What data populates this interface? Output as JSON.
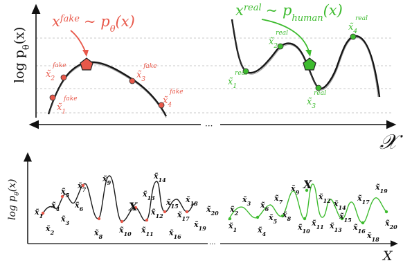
{
  "top": {
    "y_axis_label": "log p",
    "y_axis_label_sub": "θ",
    "y_axis_label_arg": "(x)",
    "x_axis_symbol": "𝒳",
    "ellipsis": "···",
    "fake_title_base": "x",
    "fake_title_sup": "fake",
    "fake_title_rest": "~ p",
    "fake_title_sub": "θ",
    "fake_title_arg": "(x)",
    "real_title_base": "x",
    "real_title_sup": "real",
    "real_title_rest": "~ p",
    "real_title_sub": "human",
    "real_title_arg": "(x)",
    "fake_points": [
      {
        "base": "x̃",
        "sub": "1",
        "sup": "fake"
      },
      {
        "base": "x̃",
        "sub": "2",
        "sup": "fake"
      },
      {
        "base": "x̃",
        "sub": "3",
        "sup": "fake"
      },
      {
        "base": "x̃",
        "sub": "4",
        "sup": "fake"
      }
    ],
    "real_points": [
      {
        "base": "x̃",
        "sub": "1",
        "sup": "real"
      },
      {
        "base": "x̃",
        "sub": "2",
        "sup": "real"
      },
      {
        "base": "x̃",
        "sub": "3",
        "sup": "real"
      },
      {
        "base": "x̃",
        "sub": "4",
        "sup": "real"
      }
    ],
    "colors": {
      "fake": "#e8584a",
      "real": "#3dbb2e"
    }
  },
  "bottom": {
    "y_axis_label": "log p",
    "y_axis_label_sub": "θ",
    "y_axis_label_arg": "(x)",
    "x_axis_label": "X",
    "ellipsis": "···",
    "marker_label": "X",
    "left_labels": [
      {
        "base": "x̃",
        "sub": "1"
      },
      {
        "base": "x̃",
        "sub": "2"
      },
      {
        "base": "x̃",
        "sub": "3"
      },
      {
        "base": "x̃",
        "sub": "4"
      },
      {
        "base": "x̃",
        "sub": "5"
      },
      {
        "base": "x̃",
        "sub": "6"
      },
      {
        "base": "x̃",
        "sub": "7"
      },
      {
        "base": "x̃",
        "sub": "8"
      },
      {
        "base": "x̃",
        "sub": "9"
      },
      {
        "base": "x̃",
        "sub": "10"
      },
      {
        "base": "x̃",
        "sub": "11"
      },
      {
        "base": "x̃",
        "sub": "12"
      },
      {
        "base": "x̃",
        "sub": "13"
      },
      {
        "base": "x̃",
        "sub": "14"
      },
      {
        "base": "x̃",
        "sub": "15"
      },
      {
        "base": "x̃",
        "sub": "16"
      },
      {
        "base": "x̃",
        "sub": "17"
      },
      {
        "base": "x̃",
        "sub": "18"
      },
      {
        "base": "x̃",
        "sub": "19"
      },
      {
        "base": "x̃",
        "sub": "20"
      }
    ],
    "right_labels": [
      {
        "base": "x̃",
        "sub": "1"
      },
      {
        "base": "x̃",
        "sub": "2"
      },
      {
        "base": "x̃",
        "sub": "3"
      },
      {
        "base": "x̃",
        "sub": "4"
      },
      {
        "base": "x̃",
        "sub": "5"
      },
      {
        "base": "x̃",
        "sub": "6"
      },
      {
        "base": "x̃",
        "sub": "7"
      },
      {
        "base": "x̃",
        "sub": "8"
      },
      {
        "base": "x̃",
        "sub": "9"
      },
      {
        "base": "x̃",
        "sub": "10"
      },
      {
        "base": "x̃",
        "sub": "11"
      },
      {
        "base": "x̃",
        "sub": "12"
      },
      {
        "base": "x̃",
        "sub": "13"
      },
      {
        "base": "x̃",
        "sub": "14"
      },
      {
        "base": "x̃",
        "sub": "15"
      },
      {
        "base": "x̃",
        "sub": "16"
      },
      {
        "base": "x̃",
        "sub": "17"
      },
      {
        "base": "x̃",
        "sub": "18"
      },
      {
        "base": "x̃",
        "sub": "19"
      },
      {
        "base": "x̃",
        "sub": "20"
      }
    ]
  }
}
